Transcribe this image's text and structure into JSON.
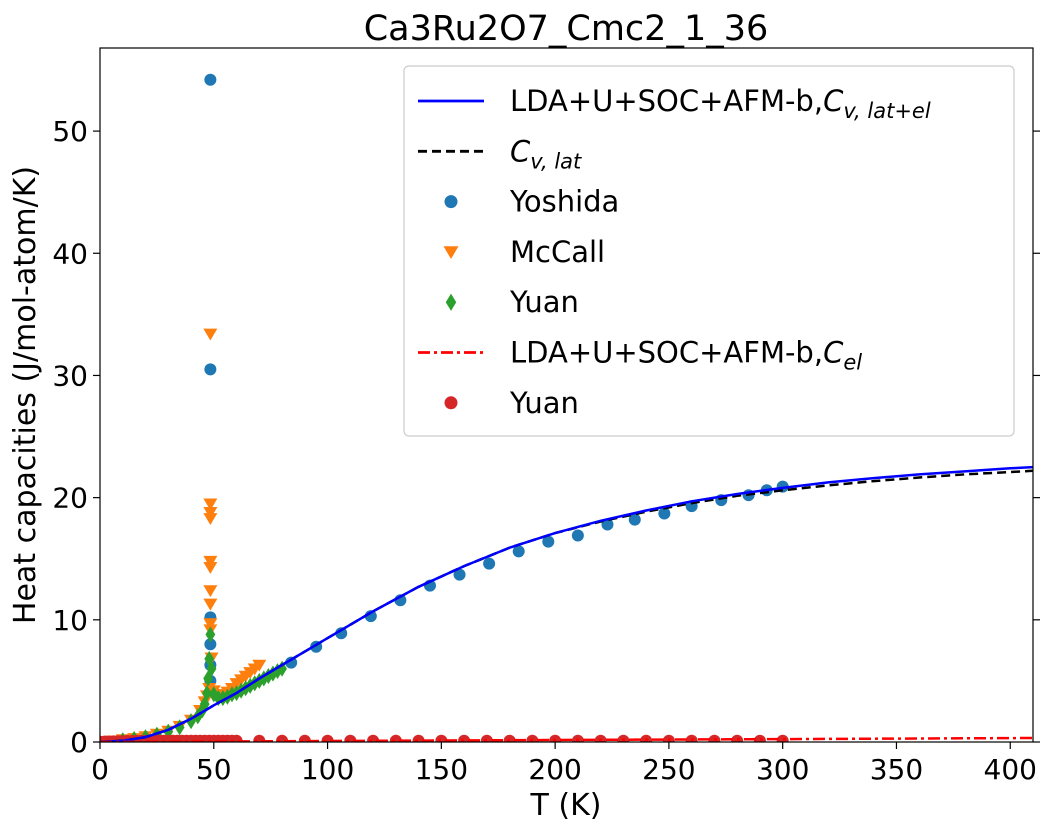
{
  "chart_data": {
    "type": "line",
    "title": "Ca3Ru2O7_Cmc2_1_36",
    "xlabel": "T (K)",
    "ylabel": "Heat capacities (J/mol-atom/K)",
    "xlim": [
      0,
      410
    ],
    "ylim": [
      0,
      56.8
    ],
    "xticks": [
      "0",
      "50",
      "100",
      "150",
      "200",
      "250",
      "300",
      "350",
      "400"
    ],
    "yticks": [
      "0",
      "10",
      "20",
      "30",
      "40",
      "50"
    ],
    "grid": false,
    "legend_position": "top-right",
    "legend": [
      {
        "label": "LDA+U+SOC+AFM-b,",
        "math": "C",
        "sub": "v, lat+el",
        "kind": "line",
        "color": "#0000ff",
        "dash": "solid"
      },
      {
        "label": "",
        "math": "C",
        "sub": "v, lat",
        "kind": "line",
        "color": "#000000",
        "dash": "dashed"
      },
      {
        "label": "Yoshida",
        "kind": "circle",
        "color": "#1f77b4"
      },
      {
        "label": "McCall",
        "kind": "triangle-down",
        "color": "#ff7f0e"
      },
      {
        "label": "Yuan",
        "kind": "diamond",
        "color": "#2ca02c"
      },
      {
        "label": "LDA+U+SOC+AFM-b,",
        "math": "C",
        "sub": "el",
        "kind": "line",
        "color": "#ff0000",
        "dash": "dashdot"
      },
      {
        "label": "Yuan",
        "kind": "circle",
        "color": "#d62728"
      }
    ],
    "series": [
      {
        "name": "LDA+U+SOC+AFM-b,Cv,lat+el",
        "kind": "line",
        "color": "#0000ff",
        "dash": "solid",
        "x": [
          0,
          10,
          20,
          30,
          40,
          50,
          60,
          70,
          80,
          90,
          100,
          120,
          140,
          160,
          180,
          200,
          220,
          240,
          260,
          280,
          300,
          320,
          340,
          360,
          380,
          400,
          410
        ],
        "y": [
          0,
          0.1,
          0.4,
          1.0,
          1.9,
          3.0,
          4.0,
          5.2,
          6.3,
          7.4,
          8.5,
          10.7,
          12.7,
          14.4,
          15.9,
          17.1,
          18.1,
          18.95,
          19.7,
          20.3,
          20.8,
          21.25,
          21.6,
          21.9,
          22.15,
          22.4,
          22.5
        ]
      },
      {
        "name": "Cv,lat",
        "kind": "line",
        "color": "#000000",
        "dash": "dashed",
        "x": [
          0,
          10,
          20,
          30,
          40,
          50,
          60,
          70,
          80,
          90,
          100,
          120,
          140,
          160,
          180,
          200,
          220,
          240,
          260,
          280,
          300,
          320,
          340,
          360,
          380,
          400,
          410
        ],
        "y": [
          0,
          0.1,
          0.4,
          1.0,
          1.9,
          3.0,
          4.0,
          5.2,
          6.3,
          7.4,
          8.5,
          10.7,
          12.7,
          14.4,
          15.9,
          17.1,
          18.05,
          18.85,
          19.55,
          20.15,
          20.6,
          21.0,
          21.35,
          21.65,
          21.9,
          22.1,
          22.2
        ]
      },
      {
        "name": "LDA+U+SOC+AFM-b,Cel",
        "kind": "line",
        "color": "#ff0000",
        "dash": "dashdot",
        "x": [
          0,
          100,
          200,
          300,
          410
        ],
        "y": [
          0,
          0.08,
          0.16,
          0.24,
          0.33
        ]
      },
      {
        "name": "Yoshida",
        "kind": "circle",
        "color": "#1f77b4",
        "x": [
          48.5,
          48.5,
          48.5,
          48.5,
          48.5,
          48.5,
          84,
          95,
          106,
          119,
          132,
          145,
          158,
          171,
          184,
          197,
          210,
          223,
          235,
          248,
          260,
          273,
          285,
          293,
          300
        ],
        "y": [
          54.2,
          30.5,
          10.2,
          8.0,
          6.3,
          5.0,
          6.5,
          7.8,
          8.9,
          10.3,
          11.6,
          12.8,
          13.7,
          14.6,
          15.6,
          16.4,
          16.9,
          17.8,
          18.2,
          18.7,
          19.3,
          19.8,
          20.2,
          20.6,
          20.9
        ]
      },
      {
        "name": "McCall",
        "kind": "triangle-down",
        "color": "#ff7f0e",
        "x": [
          0,
          5,
          10,
          15,
          20,
          25,
          30,
          35,
          40,
          44,
          46,
          47,
          48,
          48.5,
          48.5,
          48.5,
          48.5,
          48.5,
          48.5,
          48.5,
          48.5,
          48.5,
          48.5,
          49,
          50,
          52,
          54,
          56,
          58,
          60,
          62,
          64,
          66,
          68,
          70
        ],
        "y": [
          0.05,
          0.1,
          0.2,
          0.3,
          0.45,
          0.65,
          0.9,
          1.3,
          1.8,
          2.6,
          3.3,
          3.8,
          4.4,
          33.4,
          19.5,
          18.8,
          18.3,
          14.8,
          14.3,
          12.4,
          11.3,
          9.7,
          9.2,
          6.9,
          4.2,
          3.9,
          3.9,
          4.1,
          4.4,
          4.8,
          5.1,
          5.4,
          5.7,
          6.0,
          6.3
        ]
      },
      {
        "name": "Yuan",
        "kind": "diamond",
        "color": "#2ca02c",
        "x": [
          10,
          15,
          20,
          25,
          30,
          35,
          40,
          43,
          45,
          46,
          47,
          47.5,
          48,
          48.5,
          49,
          50,
          52,
          54,
          56,
          58,
          60,
          62,
          64,
          66,
          68,
          70,
          72,
          74,
          76,
          78,
          80
        ],
        "y": [
          0.15,
          0.25,
          0.4,
          0.6,
          0.85,
          1.2,
          1.7,
          2.1,
          2.6,
          3.1,
          4.0,
          5.2,
          6.8,
          8.8,
          6.0,
          3.9,
          3.6,
          3.6,
          3.7,
          3.9,
          4.0,
          4.2,
          4.4,
          4.6,
          4.8,
          5.0,
          5.2,
          5.4,
          5.6,
          5.8,
          6.0
        ]
      },
      {
        "name": "Yuan",
        "kind": "circle",
        "color": "#d62728",
        "x": [
          0,
          2,
          4,
          6,
          8,
          10,
          12,
          14,
          16,
          18,
          20,
          22,
          24,
          26,
          28,
          30,
          32,
          34,
          36,
          38,
          40,
          42,
          44,
          46,
          48,
          50,
          52,
          54,
          56,
          58,
          60,
          70,
          80,
          90,
          100,
          110,
          120,
          130,
          140,
          150,
          160,
          170,
          180,
          190,
          200,
          210,
          220,
          230,
          240,
          250,
          260,
          270,
          280,
          290,
          300
        ],
        "y": [
          0.02,
          0.03,
          0.04,
          0.05,
          0.06,
          0.07,
          0.08,
          0.08,
          0.09,
          0.09,
          0.1,
          0.1,
          0.1,
          0.1,
          0.1,
          0.1,
          0.1,
          0.1,
          0.1,
          0.1,
          0.1,
          0.1,
          0.1,
          0.1,
          0.1,
          0.1,
          0.1,
          0.1,
          0.1,
          0.1,
          0.1,
          0.1,
          0.1,
          0.1,
          0.1,
          0.1,
          0.1,
          0.1,
          0.1,
          0.1,
          0.1,
          0.1,
          0.1,
          0.1,
          0.1,
          0.1,
          0.1,
          0.1,
          0.1,
          0.1,
          0.1,
          0.1,
          0.1,
          0.1,
          0.1
        ]
      }
    ]
  }
}
